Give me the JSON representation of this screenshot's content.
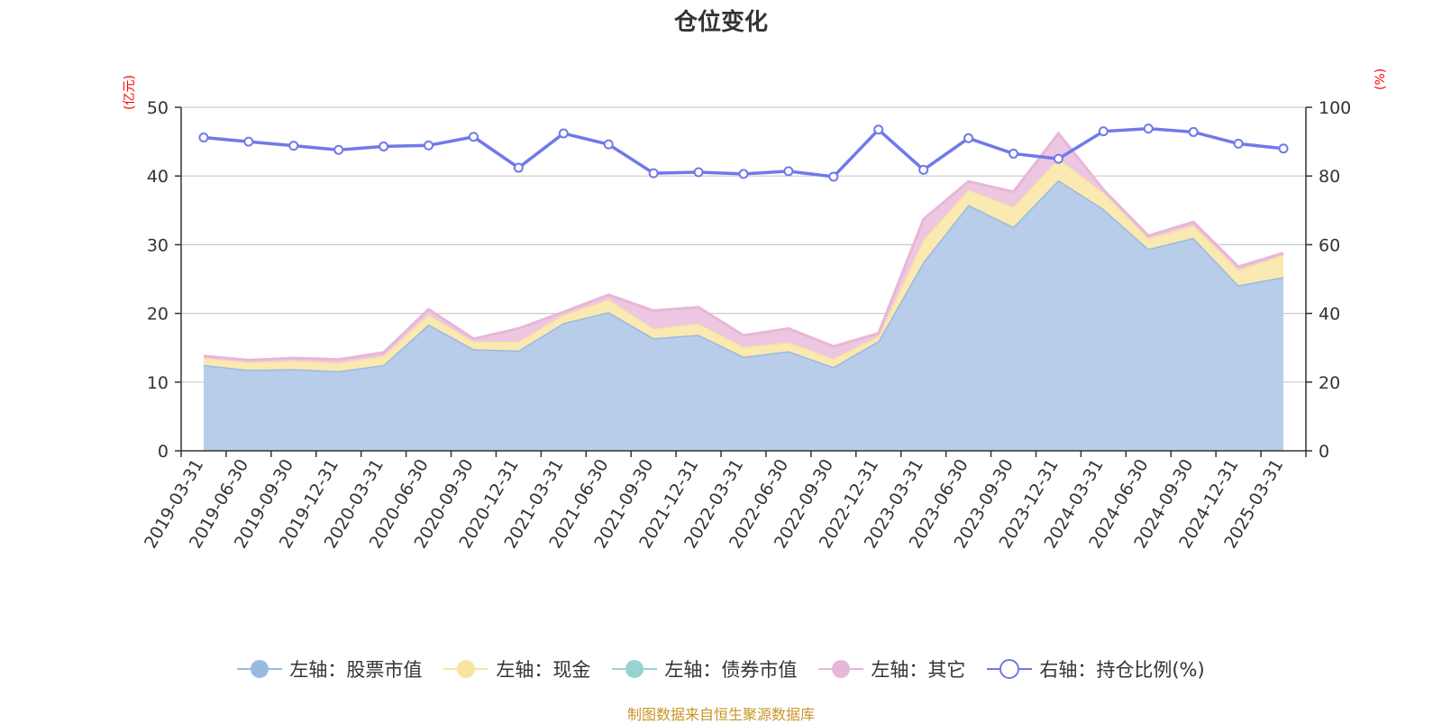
{
  "chart_data": {
    "type": "area",
    "title": "仓位变化",
    "left_unit": "(亿元)",
    "right_unit": "(%)",
    "categories": [
      "2019-03-31",
      "2019-06-30",
      "2019-09-30",
      "2019-12-31",
      "2020-03-31",
      "2020-06-30",
      "2020-09-30",
      "2020-12-31",
      "2021-03-31",
      "2021-06-30",
      "2021-09-30",
      "2021-12-31",
      "2022-03-31",
      "2022-06-30",
      "2022-09-30",
      "2022-12-31",
      "2023-03-31",
      "2023-06-30",
      "2023-09-30",
      "2023-12-31",
      "2024-03-31",
      "2024-06-30",
      "2024-09-30",
      "2024-12-31",
      "2025-03-31"
    ],
    "ylim_left": [
      0,
      50
    ],
    "ylim_right": [
      0,
      100
    ],
    "yticks_left": [
      0,
      10,
      20,
      30,
      40,
      50
    ],
    "yticks_right": [
      0,
      20,
      40,
      60,
      80,
      100
    ],
    "series": [
      {
        "name": "左轴：股票市值",
        "axis": "left",
        "stack": true,
        "color": "#9ab9e1",
        "fill": "#b8cdea",
        "values": [
          12.5,
          11.8,
          11.9,
          11.6,
          12.5,
          18.4,
          14.8,
          14.6,
          18.6,
          20.2,
          16.4,
          16.9,
          13.7,
          14.5,
          12.2,
          16.0,
          27.5,
          35.8,
          32.6,
          39.4,
          35.2,
          29.4,
          31.0,
          24.1,
          25.3
        ]
      },
      {
        "name": "左轴：现金",
        "axis": "left",
        "stack": true,
        "color": "#f8e4a0",
        "fill": "#fae9b0",
        "values": [
          1.0,
          1.1,
          1.2,
          1.2,
          1.3,
          1.4,
          1.1,
          1.3,
          1.2,
          1.8,
          1.4,
          1.6,
          1.4,
          1.3,
          1.2,
          0.7,
          3.2,
          2.2,
          2.9,
          3.1,
          2.4,
          1.5,
          1.8,
          2.2,
          3.2
        ]
      },
      {
        "name": "左轴：债券市值",
        "axis": "left",
        "stack": true,
        "color": "#97d3d3",
        "fill": "#b6e2e2",
        "values": [
          0,
          0,
          0,
          0,
          0,
          0,
          0,
          0,
          0,
          0,
          0,
          0,
          0,
          0,
          0,
          0,
          0,
          0,
          0,
          0,
          0,
          0,
          0,
          0,
          0
        ]
      },
      {
        "name": "左轴：其它",
        "axis": "left",
        "stack": true,
        "color": "#e8b6d8",
        "fill": "#edc7e2",
        "values": [
          0.3,
          0.3,
          0.4,
          0.5,
          0.5,
          0.8,
          0.4,
          1.9,
          0.4,
          0.7,
          2.6,
          2.4,
          1.7,
          2.0,
          1.8,
          0.4,
          3.0,
          1.2,
          2.2,
          3.7,
          0.4,
          0.4,
          0.5,
          0.5,
          0.3
        ]
      },
      {
        "name": "右轴：持仓比例(%)",
        "axis": "right",
        "stack": false,
        "color": "#7079ea",
        "values": [
          91.2,
          90.0,
          88.8,
          87.6,
          88.6,
          88.9,
          91.4,
          82.4,
          92.4,
          89.2,
          80.8,
          81.1,
          80.6,
          81.4,
          79.8,
          93.5,
          81.8,
          91.0,
          86.5,
          85.0,
          93.0,
          93.8,
          92.8,
          89.4,
          88.0
        ]
      }
    ]
  },
  "footer": {
    "source": "制图数据来自恒生聚源数据库"
  }
}
